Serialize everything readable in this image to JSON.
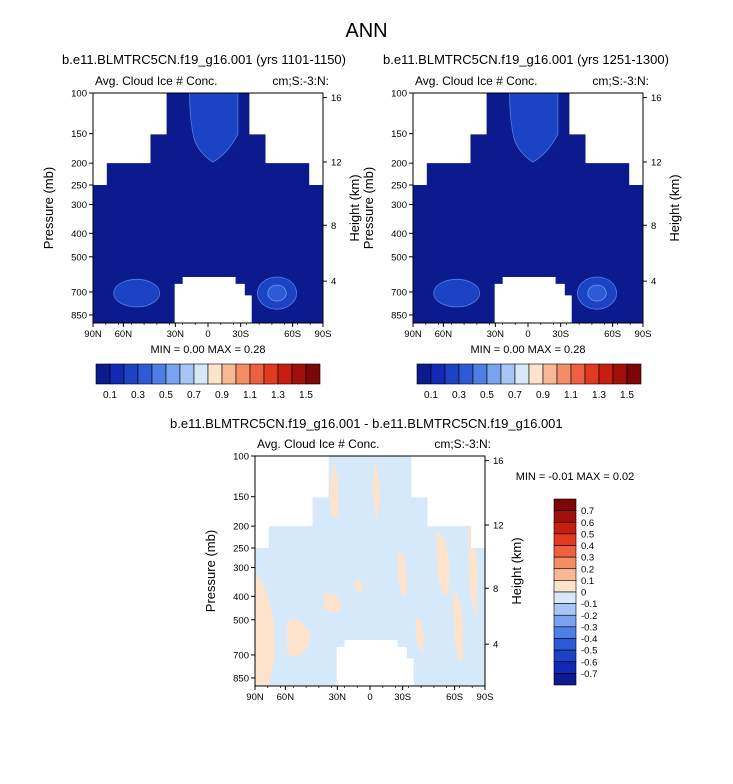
{
  "main_title": "ANN",
  "colors": {
    "ocean_dark": "#0b1a8c",
    "mid_blue": "#1c43c4",
    "light_blue_diff": "#d6e9fa",
    "peach_diff": "#fde3cc"
  },
  "chart_data": [
    {
      "type": "heatmap",
      "title": "b.e11.BLMTRC5CN.f19_g16.001 (yrs 1101-1150)",
      "left_label": "Avg. Cloud Ice # Conc.",
      "right_label": "cm;S:-3:N:",
      "ylabel": "Pressure (mb)",
      "ylabel_right": "Height (km)",
      "x_ticks": [
        "90N",
        "60N",
        "30N",
        "0",
        "30S",
        "60S",
        "90S"
      ],
      "y_ticks": [
        "100",
        "150",
        "200",
        "250",
        "300",
        "400",
        "500",
        "700",
        "850"
      ],
      "y2_ticks": [
        "16",
        "12",
        "8",
        "4"
      ],
      "stats": "MIN =  0.00  MAX =   0.28",
      "field_value": 0.05,
      "peak_value": 0.28,
      "colorbar": {
        "labels": [
          "0.1",
          "0.3",
          "0.5",
          "0.7",
          "0.9",
          "1.1",
          "1.3",
          "1.5"
        ],
        "colors": [
          "#0b1a8c",
          "#1229b3",
          "#1c43c4",
          "#2d5bd7",
          "#4e7fe4",
          "#7aa3ef",
          "#a7c5f6",
          "#d6e9fa",
          "#fde3cc",
          "#f8b896",
          "#f28d66",
          "#ed6041",
          "#e23a1f",
          "#c81e10",
          "#a1100a",
          "#7c0506"
        ]
      }
    },
    {
      "type": "heatmap",
      "title": "b.e11.BLMTRC5CN.f19_g16.001 (yrs 1251-1300)",
      "left_label": "Avg. Cloud Ice # Conc.",
      "right_label": "cm;S:-3:N:",
      "ylabel": "Pressure (mb)",
      "ylabel_right": "Height (km)",
      "x_ticks": [
        "90N",
        "60N",
        "30N",
        "0",
        "30S",
        "60S",
        "90S"
      ],
      "y_ticks": [
        "100",
        "150",
        "200",
        "250",
        "300",
        "400",
        "500",
        "700",
        "850"
      ],
      "y2_ticks": [
        "16",
        "12",
        "8",
        "4"
      ],
      "stats": "MIN =  0.00  MAX =   0.28",
      "field_value": 0.05,
      "peak_value": 0.28,
      "colorbar": {
        "labels": [
          "0.1",
          "0.3",
          "0.5",
          "0.7",
          "0.9",
          "1.1",
          "1.3",
          "1.5"
        ],
        "colors": [
          "#0b1a8c",
          "#1229b3",
          "#1c43c4",
          "#2d5bd7",
          "#4e7fe4",
          "#7aa3ef",
          "#a7c5f6",
          "#d6e9fa",
          "#fde3cc",
          "#f8b896",
          "#f28d66",
          "#ed6041",
          "#e23a1f",
          "#c81e10",
          "#a1100a",
          "#7c0506"
        ]
      }
    },
    {
      "type": "heatmap",
      "title": "b.e11.BLMTRC5CN.f19_g16.001 - b.e11.BLMTRC5CN.f19_g16.001",
      "left_label": "Avg. Cloud Ice # Conc.",
      "right_label": "cm;S:-3:N:",
      "ylabel": "Pressure (mb)",
      "ylabel_right": "Height (km)",
      "x_ticks": [
        "90N",
        "60N",
        "30N",
        "0",
        "30S",
        "60S",
        "90S"
      ],
      "y_ticks": [
        "100",
        "150",
        "200",
        "250",
        "300",
        "400",
        "500",
        "700",
        "850"
      ],
      "y2_ticks": [
        "16",
        "12",
        "8",
        "4"
      ],
      "stats": "MIN = -0.01  MAX =  0.02",
      "colorbar": {
        "labels": [
          "0.7",
          "0.6",
          "0.5",
          "0.4",
          "0.3",
          "0.2",
          "0.1",
          "0",
          "-0.1",
          "-0.2",
          "-0.3",
          "-0.4",
          "-0.5",
          "-0.6",
          "-0.7"
        ],
        "colors": [
          "#7c0506",
          "#a1100a",
          "#c81e10",
          "#e23a1f",
          "#ed6041",
          "#f28d66",
          "#f8b896",
          "#fde3cc",
          "#d6e9fa",
          "#a7c5f6",
          "#7aa3ef",
          "#4e7fe4",
          "#2d5bd7",
          "#1c43c4",
          "#1229b3",
          "#0b1a8c"
        ]
      }
    }
  ]
}
